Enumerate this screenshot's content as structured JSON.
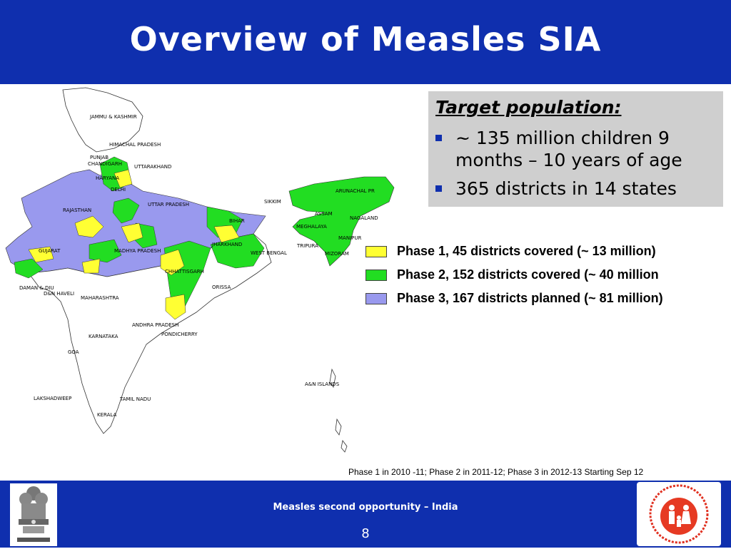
{
  "slide": {
    "title": "Overview of Measles SIA",
    "footer_text": "Measles second opportunity – India",
    "page_number": "8"
  },
  "target": {
    "heading": "Target population:",
    "bullets": [
      "~ 135 million children 9 months – 10 years of age",
      "365 districts in 14 states"
    ]
  },
  "legend": [
    {
      "color": "#ffff33",
      "label": "Phase 1, 45 districts covered (~ 13 million)"
    },
    {
      "color": "#22dd22",
      "label": "Phase 2, 152 districts covered (~ 40 million"
    },
    {
      "color": "#9999ee",
      "label": "Phase 3, 167 districts planned (~ 81 million)"
    }
  ],
  "footnote": "Phase 1 in 2010 -11; Phase 2 in 2011-12; Phase 3 in 2012-13 Starting Sep 12",
  "map_labels": {
    "jk": "JAMMU & KASHMIR",
    "hp": "HIMACHAL PRADESH",
    "punjab": "PUNJAB",
    "chandigarh": "CHANDIGARH",
    "uttarakhand": "UTTARAKHAND",
    "haryana": "HARYANA",
    "delhi": "DELHI",
    "up": "UTTAR PRADESH",
    "rajasthan": "RAJASTHAN",
    "sikkim": "SIKKIM",
    "arunachal": "ARUNACHAL PR",
    "assam": "ASSAM",
    "nagaland": "NAGALAND",
    "meghalaya": "MEGHALAYA",
    "manipur": "MANIPUR",
    "tripura": "TRIPURA",
    "mizoram": "MIZORAM",
    "bihar": "BIHAR",
    "jharkhand": "JHARKHAND",
    "wb": "WEST BENGAL",
    "gujarat": "GUJARAT",
    "mp": "MADHYA PRADESH",
    "chhattisgarh": "CHHATTISGARH",
    "orissa": "ORISSA",
    "daman": "DAMAN & DIU",
    "dnh": "D&N HAVELI",
    "maharashtra": "MAHARASHTRA",
    "ap": "ANDHRA PRADESH",
    "karnataka": "KARNATAKA",
    "pondicherry": "PONDICHERRY",
    "goa": "GOA",
    "an": "A&N ISLANDS",
    "lakshadweep": "LAKSHADWEEP",
    "tn": "TAMIL NADU",
    "kerala": "KERALA"
  }
}
